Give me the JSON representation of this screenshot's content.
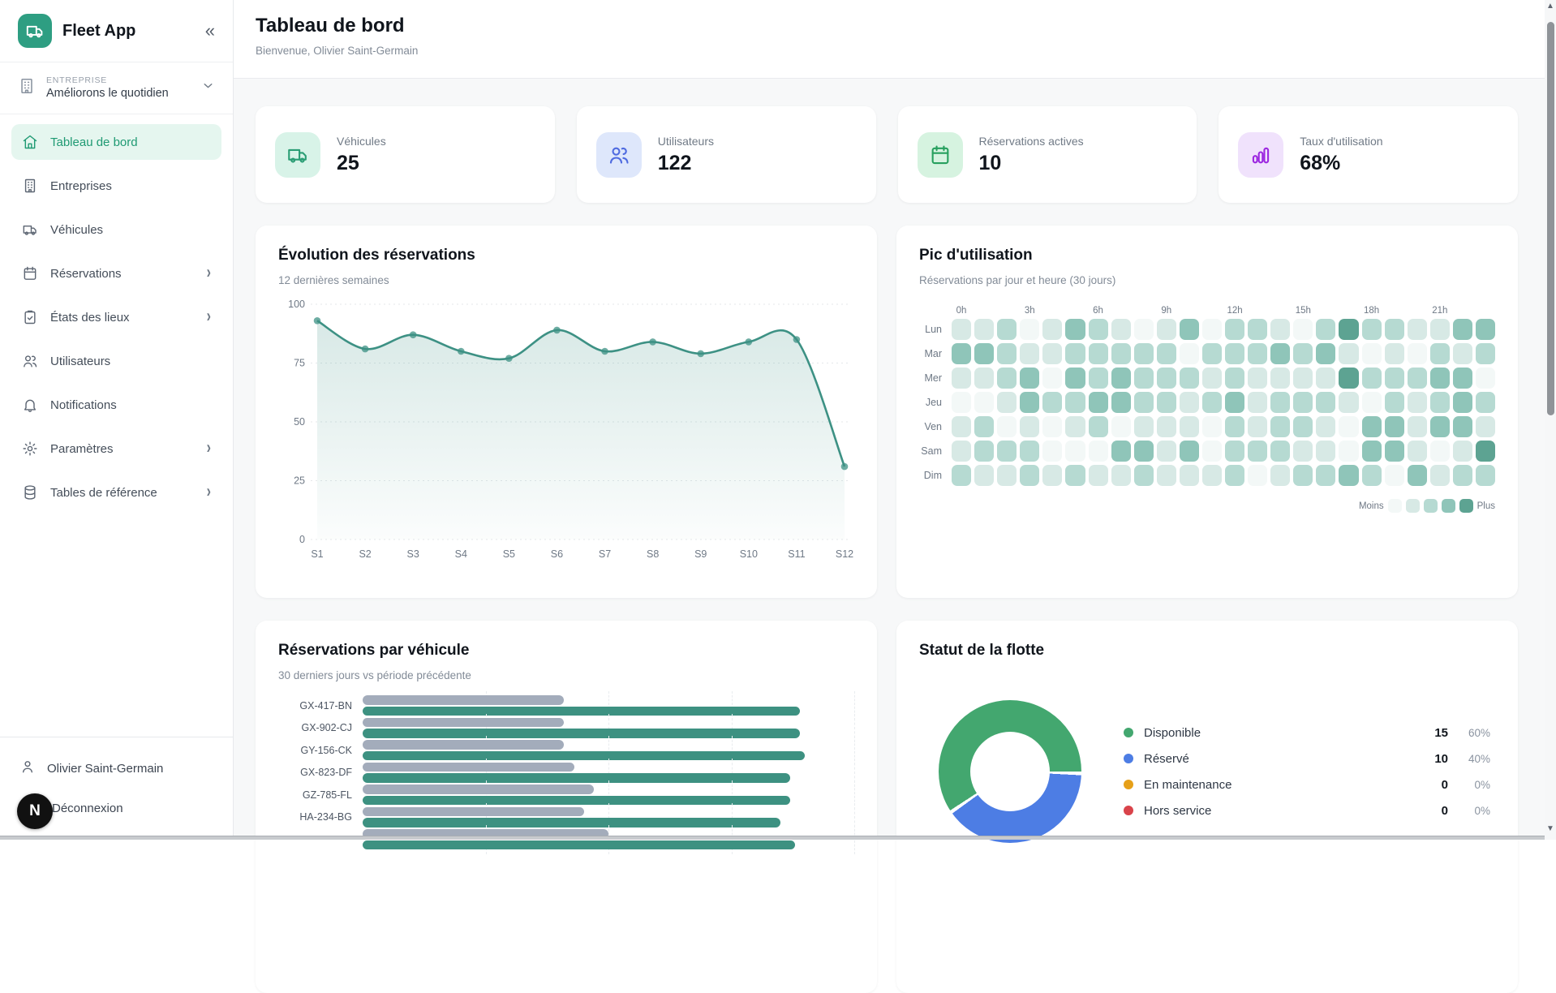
{
  "app": {
    "name": "Fleet App",
    "collapse_icon": "chevrons-left"
  },
  "sidebar": {
    "company": {
      "label": "ENTREPRISE",
      "name": "Améliorons le quotidien"
    },
    "items": [
      {
        "label": "Tableau de bord",
        "icon": "home",
        "active": true,
        "chevron": false
      },
      {
        "label": "Entreprises",
        "icon": "building",
        "active": false,
        "chevron": false
      },
      {
        "label": "Véhicules",
        "icon": "truck",
        "active": false,
        "chevron": false
      },
      {
        "label": "Réservations",
        "icon": "calendar",
        "active": false,
        "chevron": true
      },
      {
        "label": "États des lieux",
        "icon": "clipboard-check",
        "active": false,
        "chevron": true
      },
      {
        "label": "Utilisateurs",
        "icon": "users",
        "active": false,
        "chevron": false
      },
      {
        "label": "Notifications",
        "icon": "bell",
        "active": false,
        "chevron": false
      },
      {
        "label": "Paramètres",
        "icon": "gear",
        "active": false,
        "chevron": true
      },
      {
        "label": "Tables de référence",
        "icon": "database",
        "active": false,
        "chevron": true
      }
    ],
    "footer": {
      "user": "Olivier Saint-Germain",
      "logout": "Déconnexion",
      "badge": "N"
    }
  },
  "header": {
    "title": "Tableau de bord",
    "subtitle": "Bienvenue, Olivier Saint-Germain"
  },
  "stats": [
    {
      "label": "Véhicules",
      "value": "25",
      "icon": "truck",
      "color": "#2a9d74",
      "bg": "#d8f3e8"
    },
    {
      "label": "Utilisateurs",
      "value": "122",
      "icon": "users",
      "color": "#4f6be0",
      "bg": "#dee7fb"
    },
    {
      "label": "Réservations actives",
      "value": "10",
      "icon": "calendar",
      "color": "#27a05e",
      "bg": "#d6f3e0"
    },
    {
      "label": "Taux d'utilisation",
      "value": "68%",
      "icon": "chart-bars",
      "color": "#9c27e0",
      "bg": "#f0e2fc"
    }
  ],
  "chart_data": [
    {
      "type": "line",
      "title": "Évolution des réservations",
      "subtitle": "12 dernières semaines",
      "x": [
        "S1",
        "S2",
        "S3",
        "S4",
        "S5",
        "S6",
        "S7",
        "S8",
        "S9",
        "S10",
        "S11",
        "S12"
      ],
      "series": [
        {
          "name": "Réservations",
          "values": [
            93,
            81,
            87,
            80,
            77,
            89,
            80,
            84,
            79,
            84,
            85,
            31
          ]
        }
      ],
      "ylim": [
        0,
        100
      ],
      "yticks": [
        0,
        25,
        50,
        75,
        100
      ],
      "grid": true,
      "color": "#3d9184",
      "fill_from": "rgba(61,145,132,0.20)",
      "fill_to": "rgba(61,145,132,0.02)"
    },
    {
      "type": "heatmap",
      "title": "Pic d'utilisation",
      "subtitle": "Réservations par jour et heure (30 jours)",
      "col_labels": [
        "0h",
        "3h",
        "6h",
        "9h",
        "12h",
        "15h",
        "18h",
        "21h"
      ],
      "col_label_step": 3,
      "cols": 24,
      "rows": [
        "Lun",
        "Mar",
        "Mer",
        "Jeu",
        "Ven",
        "Sam",
        "Dim"
      ],
      "levels": [
        [
          2,
          2,
          3,
          1,
          2,
          4,
          3,
          2,
          1,
          2,
          4,
          1,
          3,
          3,
          2,
          1,
          3,
          5,
          3,
          3,
          2,
          2,
          4,
          4
        ],
        [
          4,
          4,
          3,
          2,
          2,
          3,
          3,
          3,
          3,
          3,
          1,
          3,
          3,
          3,
          4,
          3,
          4,
          2,
          1,
          2,
          1,
          3,
          2,
          3
        ],
        [
          2,
          2,
          3,
          4,
          1,
          4,
          3,
          4,
          3,
          3,
          3,
          2,
          3,
          2,
          2,
          2,
          2,
          5,
          3,
          3,
          3,
          4,
          4,
          1
        ],
        [
          1,
          1,
          2,
          4,
          3,
          3,
          4,
          4,
          3,
          3,
          2,
          3,
          4,
          2,
          3,
          3,
          3,
          2,
          1,
          3,
          2,
          3,
          4,
          3
        ],
        [
          2,
          3,
          1,
          2,
          1,
          2,
          3,
          1,
          2,
          2,
          2,
          1,
          3,
          2,
          3,
          3,
          2,
          1,
          4,
          4,
          2,
          4,
          4,
          2
        ],
        [
          2,
          3,
          3,
          3,
          1,
          1,
          1,
          4,
          4,
          2,
          4,
          1,
          3,
          3,
          3,
          2,
          2,
          1,
          4,
          4,
          2,
          1,
          2,
          5
        ],
        [
          3,
          2,
          2,
          3,
          2,
          3,
          2,
          2,
          3,
          2,
          2,
          2,
          3,
          1,
          2,
          3,
          3,
          4,
          3,
          1,
          4,
          2,
          3,
          3
        ]
      ],
      "palette": [
        "#f3f8f7",
        "#d7e9e5",
        "#b6dad2",
        "#8fc5b9",
        "#5da392"
      ],
      "legend": {
        "less": "Moins",
        "more": "Plus"
      }
    },
    {
      "type": "bar",
      "title": "Réservations par véhicule",
      "subtitle": "30 derniers jours vs période précédente",
      "orientation": "horizontal",
      "categories": [
        "GX-417-BN",
        "GX-902-CJ",
        "GY-156-CK",
        "GX-823-DF",
        "GZ-785-FL",
        "HA-234-BG",
        ""
      ],
      "series": [
        {
          "name": "période précédente",
          "color": "#a3acbb",
          "values": [
            41,
            41,
            41,
            43,
            47,
            45,
            50
          ]
        },
        {
          "name": "30 derniers jours",
          "color": "#3d9181",
          "values": [
            89,
            89,
            90,
            87,
            87,
            85,
            88
          ]
        }
      ],
      "xlim": [
        0,
        100
      ]
    },
    {
      "type": "pie",
      "title": "Statut de la flotte",
      "donut": true,
      "slices": [
        {
          "label": "Disponible",
          "value": 15,
          "pct": "60%",
          "color": "#43a76f"
        },
        {
          "label": "Réservé",
          "value": 10,
          "pct": "40%",
          "color": "#4d7de4"
        },
        {
          "label": "En maintenance",
          "value": 0,
          "pct": "0%",
          "color": "#e6a019"
        },
        {
          "label": "Hors service",
          "value": 0,
          "pct": "0%",
          "color": "#d9434a"
        }
      ]
    }
  ]
}
